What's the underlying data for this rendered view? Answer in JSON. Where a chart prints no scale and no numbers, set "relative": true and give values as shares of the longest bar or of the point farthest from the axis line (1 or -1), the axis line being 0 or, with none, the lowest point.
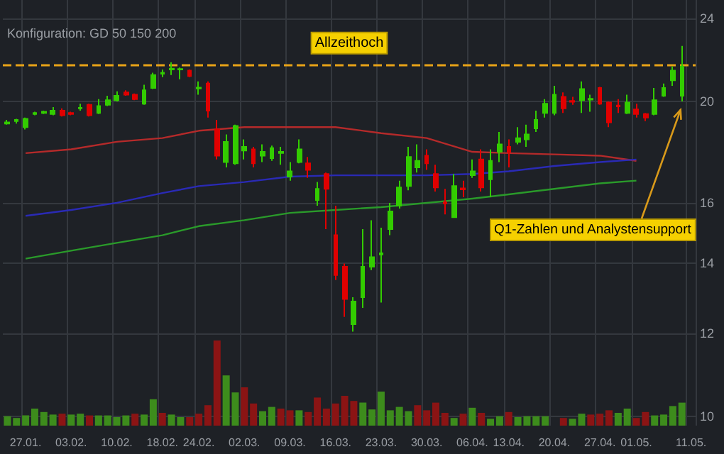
{
  "chart_data": [
    {
      "type": "candlestick",
      "subtitle": "Konfiguration: GD 50 150 200",
      "categories": [
        null,
        null,
        "27.01.",
        null,
        null,
        null,
        null,
        "03.02.",
        null,
        null,
        null,
        null,
        "10.02.",
        null,
        null,
        null,
        null,
        "18.02.",
        null,
        null,
        null,
        "24.02.",
        null,
        null,
        null,
        null,
        "02.03.",
        null,
        null,
        null,
        null,
        "09.03.",
        null,
        null,
        null,
        null,
        "16.03.",
        null,
        null,
        null,
        null,
        "23.03.",
        null,
        null,
        null,
        null,
        "30.03.",
        null,
        null,
        null,
        null,
        "06.04.",
        null,
        null,
        null,
        "13.04.",
        null,
        null,
        null,
        null,
        "20.04.",
        null,
        null,
        null,
        null,
        "27.04.",
        null,
        null,
        null,
        "01.05.",
        null,
        null,
        null,
        null,
        null,
        "11.05."
      ],
      "ohlc": [
        [
          19.05,
          19.2,
          19.0,
          19.1
        ],
        [
          19.15,
          19.25,
          19.05,
          19.2
        ],
        [
          18.9,
          19.3,
          18.8,
          19.25
        ],
        [
          19.45,
          19.55,
          19.4,
          19.5
        ],
        [
          19.5,
          19.6,
          19.45,
          19.55
        ],
        [
          19.45,
          19.75,
          19.4,
          19.6
        ],
        [
          19.6,
          19.7,
          19.35,
          19.4
        ],
        [
          19.5,
          19.55,
          19.4,
          19.45
        ],
        [
          19.7,
          19.9,
          19.6,
          19.72
        ],
        [
          19.85,
          19.9,
          19.35,
          19.4
        ],
        [
          19.5,
          20.1,
          19.45,
          19.8
        ],
        [
          19.85,
          20.25,
          19.8,
          20.05
        ],
        [
          20.05,
          20.45,
          20.0,
          20.25
        ],
        [
          20.4,
          20.5,
          20.25,
          20.3
        ],
        [
          20.3,
          20.35,
          20.05,
          20.1
        ],
        [
          19.9,
          20.75,
          19.85,
          20.5
        ],
        [
          20.6,
          21.3,
          20.55,
          21.2
        ],
        [
          21.25,
          21.45,
          21.1,
          21.3
        ],
        [
          21.45,
          21.8,
          21.2,
          21.5
        ],
        [
          21.45,
          21.55,
          21.0,
          21.48
        ],
        [
          21.4,
          21.45,
          21.1,
          21.15
        ],
        [
          20.58,
          20.9,
          20.3,
          20.62
        ],
        [
          20.8,
          20.9,
          19.3,
          19.6
        ],
        [
          18.8,
          19.2,
          17.6,
          17.75
        ],
        [
          17.5,
          18.6,
          17.3,
          18.3
        ],
        [
          17.45,
          19.0,
          17.4,
          18.95
        ],
        [
          17.95,
          18.4,
          17.6,
          18.1
        ],
        [
          18.0,
          18.1,
          17.3,
          17.45
        ],
        [
          17.75,
          18.2,
          17.5,
          17.9
        ],
        [
          17.65,
          18.15,
          17.55,
          18.05
        ],
        [
          17.85,
          18.1,
          17.4,
          17.9
        ],
        [
          16.95,
          17.5,
          16.8,
          17.15
        ],
        [
          17.5,
          18.4,
          17.45,
          18.0
        ],
        [
          17.45,
          17.7,
          16.9,
          17.2
        ],
        [
          16.1,
          16.75,
          15.9,
          16.5
        ],
        [
          17.05,
          17.1,
          15.1,
          16.5
        ],
        [
          14.9,
          15.9,
          13.5,
          13.65
        ],
        [
          13.9,
          14.0,
          12.45,
          12.95
        ],
        [
          12.25,
          13.0,
          12.05,
          12.88
        ],
        [
          13.0,
          15.1,
          12.7,
          13.9
        ],
        [
          13.9,
          15.4,
          13.8,
          14.2
        ],
        [
          14.28,
          15.15,
          12.85,
          14.32
        ],
        [
          15.1,
          16.0,
          14.9,
          15.7
        ],
        [
          15.9,
          16.8,
          15.8,
          16.55
        ],
        [
          16.6,
          18.1,
          16.45,
          17.7
        ],
        [
          17.3,
          18.2,
          17.1,
          17.55
        ],
        [
          17.75,
          18.0,
          17.2,
          17.45
        ],
        [
          17.05,
          17.4,
          16.4,
          16.55
        ],
        [
          16.02,
          16.5,
          15.6,
          15.98
        ],
        [
          15.5,
          17.05,
          15.5,
          16.6
        ],
        [
          16.52,
          16.8,
          16.2,
          16.48
        ],
        [
          17.0,
          17.6,
          16.9,
          17.15
        ],
        [
          17.6,
          18.0,
          16.4,
          16.55
        ],
        [
          16.85,
          18.0,
          16.2,
          17.55
        ],
        [
          17.9,
          18.7,
          17.5,
          18.2
        ],
        [
          18.1,
          18.4,
          17.3,
          17.9
        ],
        [
          18.3,
          18.9,
          18.2,
          18.45
        ],
        [
          18.4,
          19.0,
          18.1,
          18.6
        ],
        [
          18.85,
          19.6,
          18.7,
          19.2
        ],
        [
          19.5,
          20.1,
          19.3,
          19.9
        ],
        [
          19.5,
          20.7,
          19.4,
          20.3
        ],
        [
          20.2,
          20.4,
          19.5,
          19.7
        ],
        [
          20.02,
          20.2,
          19.85,
          19.98
        ],
        [
          20.05,
          20.9,
          19.5,
          20.55
        ],
        [
          20.08,
          20.3,
          19.55,
          20.12
        ],
        [
          20.6,
          20.65,
          19.85,
          19.9
        ],
        [
          19.95,
          20.0,
          18.9,
          19.1
        ],
        [
          19.82,
          20.1,
          19.5,
          19.78
        ],
        [
          19.5,
          20.3,
          19.45,
          19.95
        ],
        [
          19.65,
          19.9,
          19.3,
          19.45
        ],
        [
          19.45,
          19.5,
          19.15,
          19.3
        ],
        [
          19.45,
          20.6,
          19.4,
          20.05
        ],
        [
          20.25,
          20.8,
          20.2,
          20.6
        ],
        [
          20.95,
          21.6,
          20.7,
          21.4
        ],
        [
          20.25,
          22.6,
          20.0,
          21.6
        ],
        null
      ],
      "colors": [
        "#33cc00",
        "#33cc00",
        "#33cc00",
        "#33cc00",
        "#33cc00",
        "#33cc00",
        "#e00000",
        "#e00000",
        "#33cc00",
        "#e00000",
        "#33cc00",
        "#33cc00",
        "#33cc00",
        "#e00000",
        "#e00000",
        "#33cc00",
        "#33cc00",
        "#33cc00",
        "#33cc00",
        "#33cc00",
        "#e00000",
        "#33cc00",
        "#e00000",
        "#e00000",
        "#33cc00",
        "#33cc00",
        "#33cc00",
        "#e00000",
        "#33cc00",
        "#33cc00",
        "#33cc00",
        "#33cc00",
        "#33cc00",
        "#e00000",
        "#33cc00",
        "#e00000",
        "#e00000",
        "#e00000",
        "#33cc00",
        "#33cc00",
        "#33cc00",
        "#33cc00",
        "#33cc00",
        "#33cc00",
        "#33cc00",
        "#33cc00",
        "#e00000",
        "#e00000",
        "#e00000",
        "#33cc00",
        "#e00000",
        "#33cc00",
        "#e00000",
        "#33cc00",
        "#33cc00",
        "#e00000",
        "#33cc00",
        "#33cc00",
        "#33cc00",
        "#33cc00",
        "#33cc00",
        "#e00000",
        "#e00000",
        "#33cc00",
        "#33cc00",
        "#e00000",
        "#e00000",
        "#e00000",
        "#33cc00",
        "#e00000",
        "#e00000",
        "#33cc00",
        "#33cc00",
        "#33cc00",
        "#33cc00",
        null
      ],
      "series": [
        {
          "type": "line",
          "color": "#b52a2a",
          "x": [
            "27.01.",
            "03.02.",
            "10.02.",
            "18.02.",
            "24.02.",
            "02.03.",
            "09.03.",
            "16.03.",
            "23.03.",
            "30.03.",
            "06.04.",
            "13.04.",
            "20.04.",
            "27.04.",
            "01.05."
          ],
          "values": [
            17.85,
            18.0,
            18.3,
            18.45,
            18.75,
            18.9,
            18.9,
            18.9,
            18.65,
            18.45,
            17.9,
            17.85,
            17.8,
            17.75,
            17.55
          ]
        },
        {
          "type": "line",
          "color": "#2a2ab5",
          "x": [
            "27.01.",
            "03.02.",
            "10.02.",
            "18.02.",
            "24.02.",
            "02.03.",
            "09.03.",
            "16.03.",
            "23.03.",
            "30.03.",
            "06.04.",
            "13.04.",
            "20.04.",
            "27.04.",
            "01.05."
          ],
          "values": [
            15.55,
            15.75,
            16.0,
            16.35,
            16.6,
            16.75,
            16.95,
            17.0,
            17.0,
            17.0,
            17.05,
            17.15,
            17.35,
            17.5,
            17.6
          ]
        },
        {
          "type": "line",
          "color": "#2a9a2a",
          "x": [
            "27.01.",
            "03.02.",
            "10.02.",
            "18.02.",
            "24.02.",
            "02.03.",
            "09.03.",
            "16.03.",
            "23.03.",
            "30.03.",
            "06.04.",
            "13.04.",
            "20.04.",
            "27.04.",
            "01.05."
          ],
          "values": [
            14.15,
            14.4,
            14.65,
            14.9,
            15.2,
            15.4,
            15.65,
            15.75,
            15.85,
            16.0,
            16.15,
            16.3,
            16.5,
            16.7,
            16.8
          ]
        }
      ],
      "marker": "none",
      "log": true,
      "ylim": [
        9.8,
        25
      ],
      "yticks": [
        10,
        12,
        14,
        16,
        20,
        24
      ],
      "grid": true,
      "tick_labels": "y",
      "ref_lines": [
        {
          "axis": "y",
          "value": 21.7,
          "label": "Allzeithoch",
          "color": "#e8a317",
          "line_style": "dashed"
        }
      ],
      "annotations": [
        "Q1-Zahlen und Analystensupport"
      ]
    },
    {
      "type": "bar",
      "relative": true,
      "grid": "x",
      "tick_labels": "x",
      "categories": [
        null,
        null,
        "27.01.",
        null,
        null,
        null,
        null,
        "03.02.",
        null,
        null,
        null,
        null,
        "10.02.",
        null,
        null,
        null,
        null,
        "18.02.",
        null,
        null,
        null,
        "24.02.",
        null,
        null,
        null,
        null,
        "02.03.",
        null,
        null,
        null,
        null,
        "09.03.",
        null,
        null,
        null,
        null,
        "16.03.",
        null,
        null,
        null,
        null,
        "23.03.",
        null,
        null,
        null,
        null,
        "30.03.",
        null,
        null,
        null,
        null,
        "06.04.",
        null,
        null,
        null,
        "13.04.",
        null,
        null,
        null,
        null,
        "20.04.",
        null,
        null,
        null,
        null,
        "27.04.",
        null,
        null,
        null,
        "01.05.",
        null,
        null,
        null,
        null,
        null,
        "11.05."
      ],
      "values": [
        0.11,
        0.09,
        0.12,
        0.2,
        0.16,
        0.13,
        0.14,
        0.13,
        0.14,
        0.12,
        0.12,
        0.12,
        0.1,
        0.12,
        0.14,
        0.13,
        0.31,
        0.15,
        0.13,
        0.1,
        0.1,
        0.14,
        0.24,
        1,
        0.59,
        0.39,
        0.45,
        0.26,
        0.17,
        0.22,
        0.2,
        0.18,
        0.18,
        0.16,
        0.33,
        0.2,
        0.26,
        0.35,
        0.29,
        0.27,
        0.19,
        0.4,
        0.18,
        0.22,
        0.17,
        0.24,
        0.18,
        0.27,
        0.15,
        0.09,
        0.14,
        0.21,
        0.15,
        0.08,
        0.11,
        0.16,
        0.1,
        0.11,
        0.11,
        0.11,
        null,
        0.09,
        0.08,
        0.14,
        0.13,
        0.14,
        0.18,
        0.15,
        0.2,
        0.09,
        0.16,
        0.12,
        0.13,
        0.23,
        0.27,
        null
      ],
      "colors": [
        "#3d8c1c",
        "#3d8c1c",
        "#3d8c1c",
        "#3d8c1c",
        "#3d8c1c",
        "#3d8c1c",
        "#8b1414",
        "#3d8c1c",
        "#3d8c1c",
        "#8b1414",
        "#3d8c1c",
        "#3d8c1c",
        "#3d8c1c",
        "#3d8c1c",
        "#8b1414",
        "#3d8c1c",
        "#3d8c1c",
        "#8b1414",
        "#3d8c1c",
        "#3d8c1c",
        "#8b1414",
        "#8b1414",
        "#8b1414",
        "#8b1414",
        "#3d8c1c",
        "#3d8c1c",
        "#8b1414",
        "#8b1414",
        "#3d8c1c",
        "#3d8c1c",
        "#8b1414",
        "#8b1414",
        "#3d8c1c",
        "#8b1414",
        "#8b1414",
        "#8b1414",
        "#8b1414",
        "#8b1414",
        "#8b1414",
        "#3d8c1c",
        "#3d8c1c",
        "#3d8c1c",
        "#3d8c1c",
        "#3d8c1c",
        "#3d8c1c",
        "#8b1414",
        "#8b1414",
        "#8b1414",
        "#8b1414",
        "#3d8c1c",
        "#8b1414",
        "#3d8c1c",
        "#8b1414",
        "#3d8c1c",
        "#3d8c1c",
        "#8b1414",
        "#3d8c1c",
        "#3d8c1c",
        "#3d8c1c",
        "#3d8c1c",
        null,
        "#8b1414",
        "#3d8c1c",
        "#3d8c1c",
        "#8b1414",
        "#8b1414",
        "#8b1414",
        "#3d8c1c",
        "#3d8c1c",
        "#8b1414",
        "#8b1414",
        "#3d8c1c",
        "#3d8c1c",
        "#3d8c1c",
        "#3d8c1c",
        null
      ]
    }
  ]
}
